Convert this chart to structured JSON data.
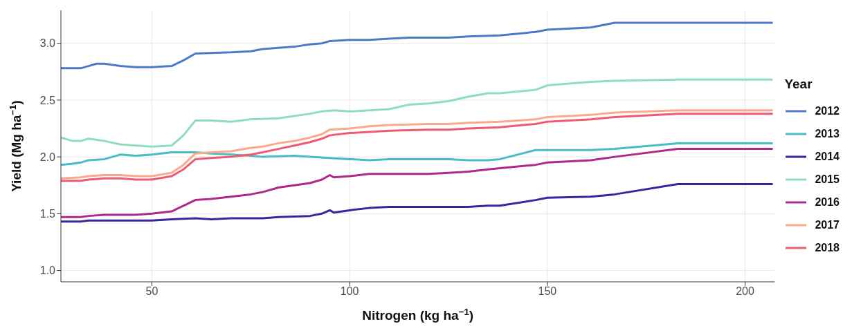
{
  "chart_data": {
    "type": "line",
    "xlabel": "Nitrogen (kg ha$^{−1}$)",
    "ylabel": "Yield (Mg ha$^{−1}$)",
    "legend_title": "Year",
    "legend": "right",
    "grid": true,
    "marker": "none",
    "line_style": "solid",
    "xlim": [
      27,
      207.5
    ],
    "ylim": [
      0.9,
      3.29
    ],
    "xticks": [
      50,
      100,
      150,
      200
    ],
    "yticks": [
      {
        "value": 1,
        "label": "1.0"
      },
      {
        "value": 1.5,
        "label": "1.5"
      },
      {
        "value": 2,
        "label": "2.0"
      },
      {
        "value": 2.5,
        "label": "2.5"
      },
      {
        "value": 3,
        "label": "3.0"
      }
    ],
    "series": [
      {
        "name": "2012",
        "color": "#4a7bc8",
        "x": [
          27,
          32,
          34,
          36,
          38,
          42,
          46,
          50,
          55,
          58,
          61,
          70,
          75,
          78,
          86,
          90,
          93,
          95,
          100,
          105,
          110,
          115,
          125,
          130,
          138,
          147,
          150,
          161,
          167,
          183,
          207
        ],
        "values": [
          2.78,
          2.78,
          2.8,
          2.82,
          2.82,
          2.8,
          2.79,
          2.79,
          2.8,
          2.85,
          2.91,
          2.92,
          2.93,
          2.95,
          2.97,
          2.99,
          3.0,
          3.02,
          3.03,
          3.03,
          3.04,
          3.05,
          3.05,
          3.06,
          3.07,
          3.1,
          3.12,
          3.14,
          3.18,
          3.18,
          3.18
        ]
      },
      {
        "name": "2013",
        "color": "#46bcc3",
        "x": [
          27,
          30,
          32,
          34,
          38,
          42,
          46,
          50,
          55,
          58,
          61,
          65,
          70,
          75,
          78,
          86,
          90,
          95,
          100,
          105,
          110,
          120,
          125,
          130,
          135,
          138,
          147,
          150,
          161,
          167,
          183,
          207
        ],
        "values": [
          1.93,
          1.94,
          1.95,
          1.97,
          1.98,
          2.02,
          2.01,
          2.02,
          2.04,
          2.04,
          2.04,
          2.03,
          2.02,
          2.01,
          2.0,
          2.01,
          2.0,
          1.99,
          1.98,
          1.97,
          1.98,
          1.98,
          1.98,
          1.97,
          1.97,
          1.98,
          2.06,
          2.06,
          2.06,
          2.07,
          2.12,
          2.12
        ]
      },
      {
        "name": "2014",
        "color": "#3a24a0",
        "x": [
          27,
          32,
          34,
          38,
          46,
          50,
          55,
          61,
          65,
          70,
          78,
          82,
          90,
          93,
          95,
          96,
          100,
          105,
          110,
          115,
          125,
          130,
          135,
          138,
          147,
          150,
          161,
          167,
          183,
          207
        ],
        "values": [
          1.43,
          1.43,
          1.44,
          1.44,
          1.44,
          1.44,
          1.45,
          1.46,
          1.45,
          1.46,
          1.46,
          1.47,
          1.48,
          1.5,
          1.53,
          1.51,
          1.53,
          1.55,
          1.56,
          1.56,
          1.56,
          1.56,
          1.57,
          1.57,
          1.62,
          1.64,
          1.65,
          1.67,
          1.76,
          1.76
        ]
      },
      {
        "name": "2015",
        "color": "#8fdcc0",
        "x": [
          27,
          30,
          32,
          34,
          38,
          42,
          46,
          50,
          55,
          58,
          61,
          65,
          70,
          75,
          82,
          86,
          90,
          93,
          96,
          100,
          105,
          110,
          115,
          120,
          125,
          130,
          135,
          138,
          147,
          150,
          161,
          167,
          183,
          207
        ],
        "values": [
          2.17,
          2.14,
          2.14,
          2.16,
          2.14,
          2.11,
          2.1,
          2.09,
          2.1,
          2.19,
          2.32,
          2.32,
          2.31,
          2.33,
          2.34,
          2.36,
          2.38,
          2.4,
          2.41,
          2.4,
          2.41,
          2.42,
          2.46,
          2.47,
          2.49,
          2.53,
          2.56,
          2.56,
          2.59,
          2.63,
          2.66,
          2.67,
          2.68,
          2.68
        ]
      },
      {
        "name": "2016",
        "color": "#b0288a",
        "x": [
          27,
          32,
          34,
          38,
          46,
          50,
          55,
          58,
          61,
          65,
          70,
          75,
          78,
          82,
          86,
          90,
          93,
          95,
          96,
          100,
          105,
          110,
          120,
          125,
          130,
          135,
          138,
          147,
          150,
          161,
          167,
          183,
          207
        ],
        "values": [
          1.47,
          1.47,
          1.48,
          1.49,
          1.49,
          1.5,
          1.52,
          1.57,
          1.62,
          1.63,
          1.65,
          1.67,
          1.69,
          1.73,
          1.75,
          1.77,
          1.8,
          1.84,
          1.82,
          1.83,
          1.85,
          1.85,
          1.85,
          1.86,
          1.87,
          1.89,
          1.9,
          1.93,
          1.95,
          1.97,
          2.0,
          2.07,
          2.07
        ]
      },
      {
        "name": "2017",
        "color": "#fba98c",
        "x": [
          27,
          32,
          34,
          38,
          42,
          46,
          50,
          55,
          58,
          61,
          65,
          70,
          75,
          78,
          82,
          86,
          90,
          93,
          95,
          100,
          105,
          110,
          120,
          125,
          130,
          138,
          147,
          150,
          161,
          167,
          183,
          207
        ],
        "values": [
          1.81,
          1.82,
          1.83,
          1.84,
          1.84,
          1.83,
          1.83,
          1.86,
          1.93,
          2.03,
          2.04,
          2.05,
          2.08,
          2.09,
          2.12,
          2.14,
          2.17,
          2.2,
          2.24,
          2.25,
          2.27,
          2.28,
          2.29,
          2.29,
          2.3,
          2.31,
          2.33,
          2.35,
          2.37,
          2.39,
          2.41,
          2.41
        ]
      },
      {
        "name": "2018",
        "color": "#ef5a72",
        "x": [
          27,
          32,
          34,
          38,
          42,
          46,
          50,
          55,
          58,
          61,
          65,
          70,
          75,
          78,
          82,
          86,
          90,
          93,
          95,
          100,
          105,
          110,
          120,
          125,
          130,
          138,
          147,
          150,
          161,
          167,
          183,
          207
        ],
        "values": [
          1.79,
          1.79,
          1.8,
          1.81,
          1.81,
          1.8,
          1.8,
          1.83,
          1.89,
          1.98,
          1.99,
          2.0,
          2.02,
          2.04,
          2.07,
          2.1,
          2.13,
          2.16,
          2.19,
          2.21,
          2.22,
          2.23,
          2.24,
          2.24,
          2.25,
          2.26,
          2.29,
          2.31,
          2.33,
          2.35,
          2.38,
          2.38
        ]
      }
    ]
  }
}
